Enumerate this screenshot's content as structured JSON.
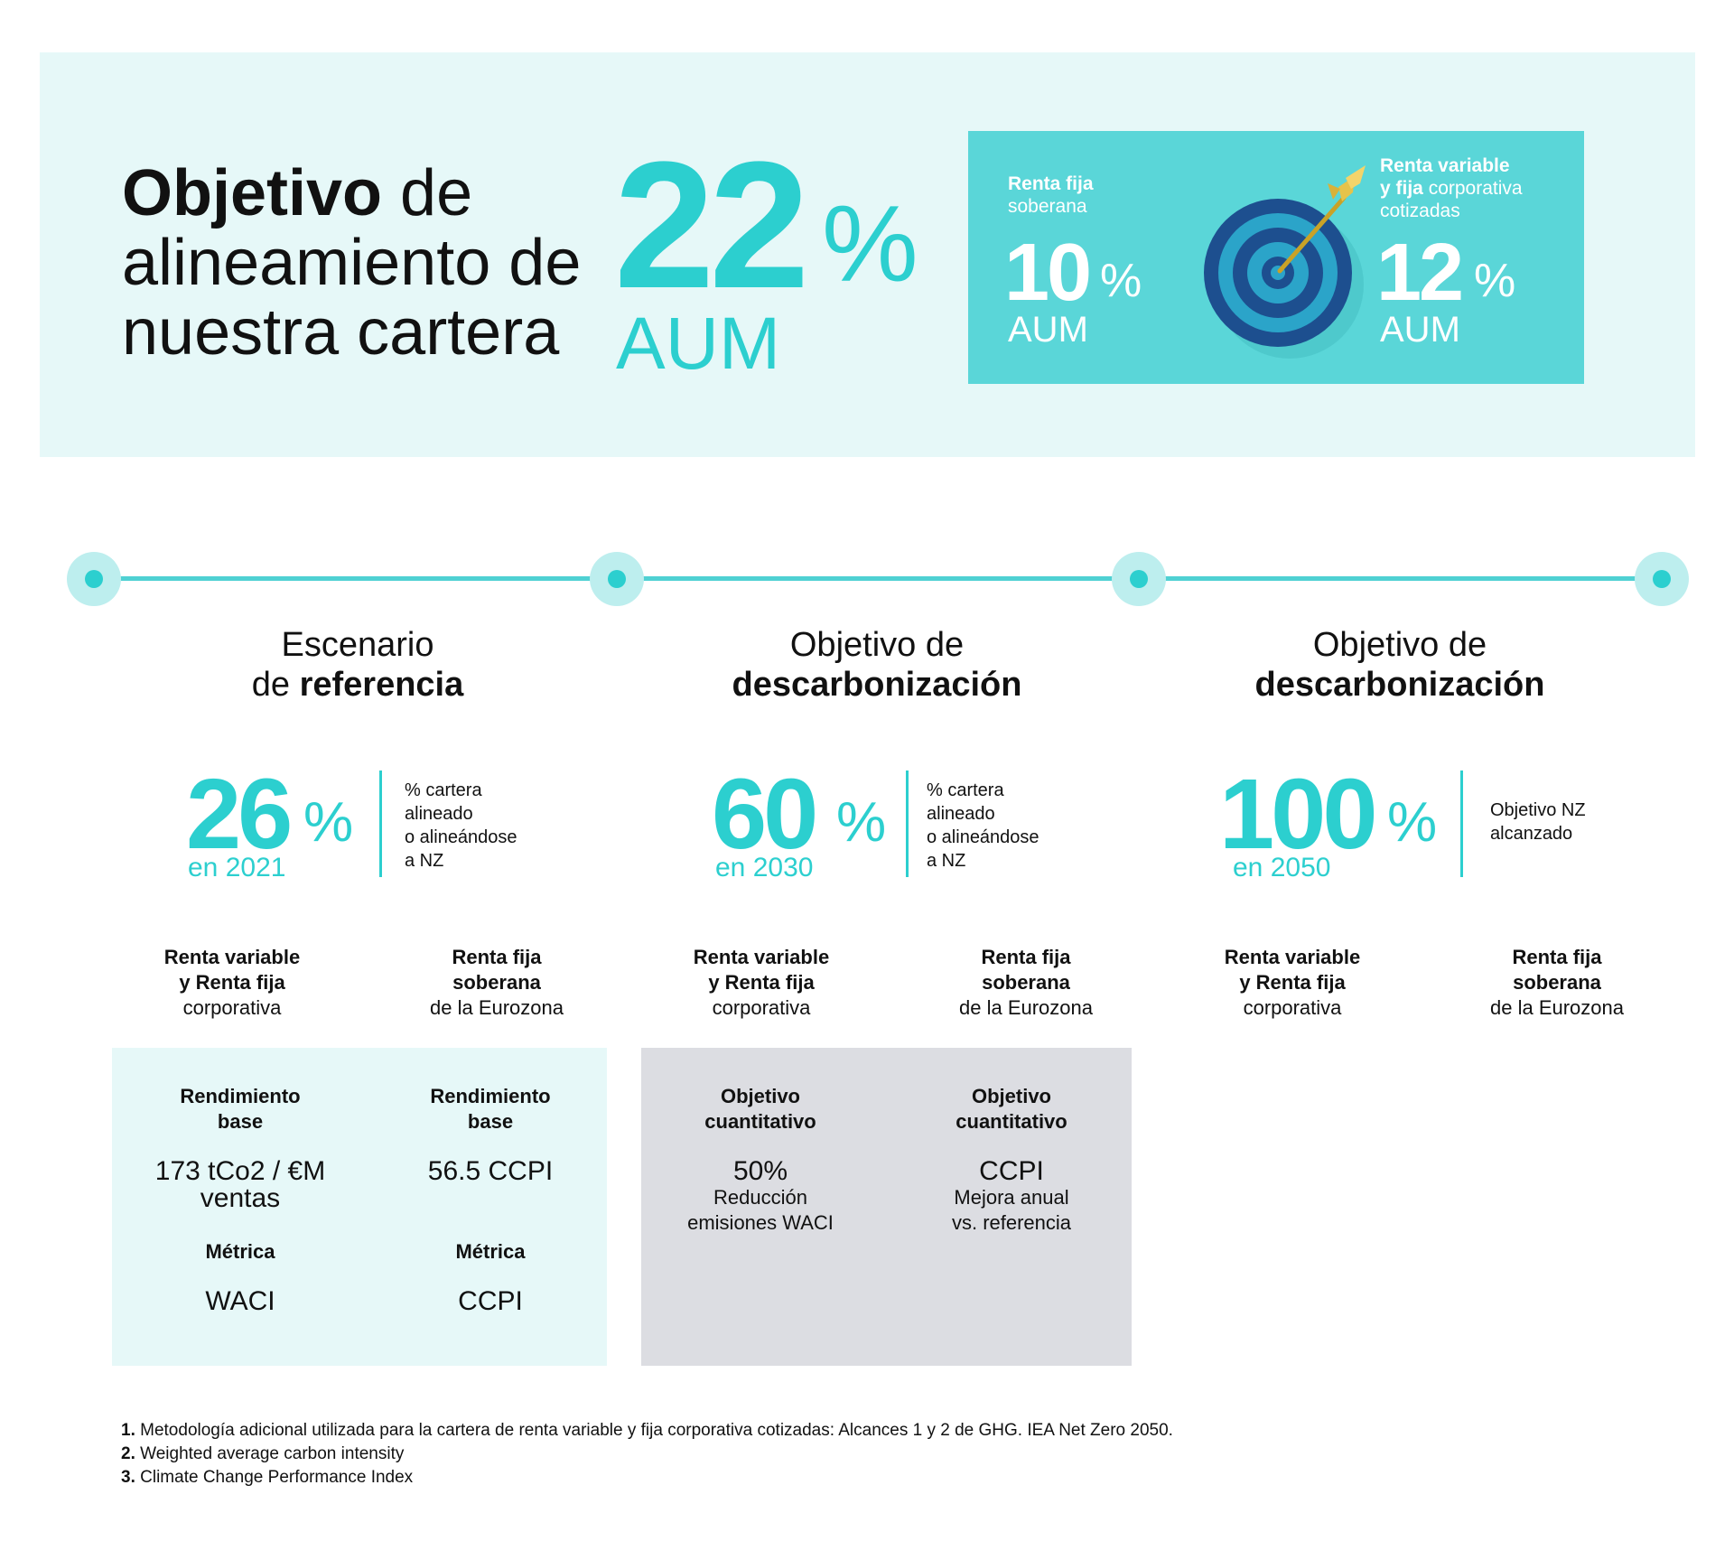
{
  "header": {
    "title_bold": "Objetivo",
    "title_rest_1": " de",
    "title_line_2": "alineamiento de",
    "title_line_3": "nuestra cartera",
    "total_value": "22",
    "total_sign": "%",
    "total_unit": "AUM"
  },
  "split": {
    "left": {
      "label_bold": "Renta fija",
      "label_rest": "soberana",
      "value": "10",
      "sign": "%",
      "unit": "AUM"
    },
    "right": {
      "label_bold_1": "Renta variable",
      "label_bold_2": "y fija",
      "label_rest_2": " corporativa",
      "label_rest_3": "cotizadas",
      "value": "12",
      "sign": "%",
      "unit": "AUM"
    },
    "icon": "target-arrow-icon"
  },
  "phases": [
    {
      "head_line_1": "Escenario",
      "head_line_2_pre": "de ",
      "head_line_2_bold": "referencia",
      "value": "26",
      "sign": "%",
      "year": "en 2021",
      "desc": [
        "% cartera",
        "alineado",
        "o alineándose",
        "a NZ"
      ],
      "col_a": {
        "bold_1": "Renta variable",
        "bold_2": "y Renta fija",
        "rest": "corporativa"
      },
      "col_b": {
        "bold_1": "Renta fija",
        "bold_2": "soberana",
        "rest": "de la Eurozona"
      }
    },
    {
      "head_line_1": "Objetivo de",
      "head_line_2_pre": "",
      "head_line_2_bold": "descarbonización",
      "value": "60",
      "sign": "%",
      "year": "en 2030",
      "desc": [
        "% cartera",
        "alineado",
        "o alineándose",
        "a NZ"
      ],
      "col_a": {
        "bold_1": "Renta variable",
        "bold_2": "y Renta fija",
        "rest": "corporativa"
      },
      "col_b": {
        "bold_1": "Renta fija",
        "bold_2": "soberana",
        "rest": "de la Eurozona"
      }
    },
    {
      "head_line_1": "Objetivo de",
      "head_line_2_pre": "",
      "head_line_2_bold": "descarbonización",
      "value": "100",
      "sign": "%",
      "year": "en 2050",
      "desc": [
        "Objetivo NZ",
        "alcanzado"
      ],
      "col_a": {
        "bold_1": "Renta variable",
        "bold_2": "y Renta fija",
        "rest": "corporativa"
      },
      "col_b": {
        "bold_1": "Renta fija",
        "bold_2": "soberana",
        "rest": "de la Eurozona"
      }
    }
  ],
  "reference_box": {
    "left": {
      "title_1": "Rendimiento",
      "title_2": "base",
      "value_1": "173 tCo2 / €M",
      "value_2": "ventas",
      "metric_title": "Métrica",
      "metric_value": "WACI"
    },
    "right": {
      "title_1": "Rendimiento",
      "title_2": "base",
      "value_1": "56.5 CCPI",
      "metric_title": "Métrica",
      "metric_value": "CCPI"
    }
  },
  "target_box": {
    "left": {
      "title_1": "Objetivo",
      "title_2": "cuantitativo",
      "value": "50%",
      "note_1": "Reducción",
      "note_2": "emisiones WACI"
    },
    "right": {
      "title_1": "Objetivo",
      "title_2": "cuantitativo",
      "value": "CCPI",
      "note_1": "Mejora anual",
      "note_2": "vs. referencia"
    }
  },
  "footnotes": [
    {
      "n": "1.",
      "text": " Metodología adicional utilizada para la cartera de renta variable y fija corporativa cotizadas: Alcances 1 y 2 de GHG. IEA Net Zero 2050."
    },
    {
      "n": "2.",
      "text": " Weighted average carbon intensity"
    },
    {
      "n": "3.",
      "text": " Climate Change Performance Index"
    }
  ],
  "colors": {
    "accent": "#2ccfcf",
    "band": "#e6f8f8",
    "teal_box": "#5ad6d8",
    "grey_box": "#dcdde2"
  }
}
